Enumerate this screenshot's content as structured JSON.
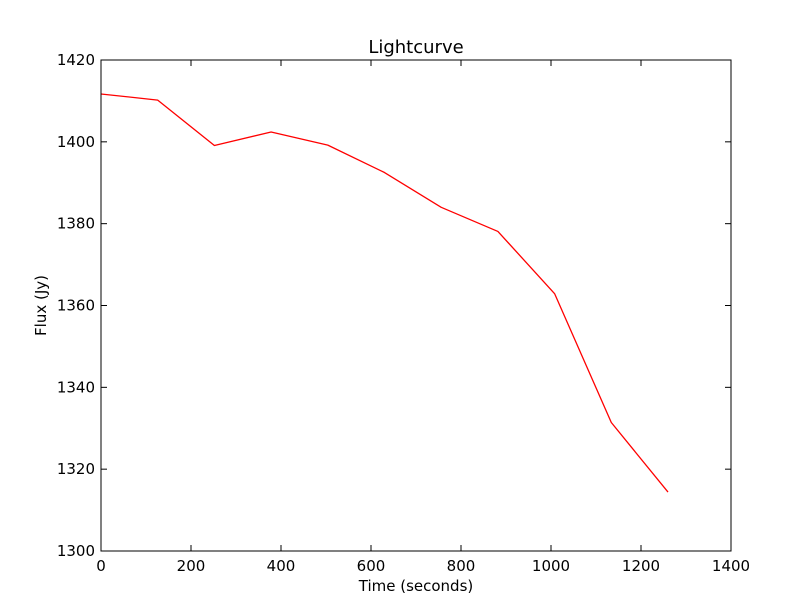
{
  "chart_data": {
    "type": "line",
    "title": "Lightcurve",
    "xlabel": "Time (seconds)",
    "ylabel": "Flux (Jy)",
    "xlim": [
      0,
      1400
    ],
    "ylim": [
      1300,
      1420
    ],
    "x_ticks": [
      0,
      200,
      400,
      600,
      800,
      1000,
      1200,
      1400
    ],
    "y_ticks": [
      1300,
      1320,
      1340,
      1360,
      1380,
      1400,
      1420
    ],
    "grid": false,
    "legend": "none",
    "series": [
      {
        "color": "#ff0000",
        "x": [
          0,
          126,
          252,
          378,
          504,
          630,
          756,
          882,
          1008,
          1134,
          1260
        ],
        "y": [
          1411.7,
          1410.2,
          1399.1,
          1402.4,
          1399.2,
          1392.5,
          1384.0,
          1378.1,
          1362.9,
          1331.4,
          1314.4
        ]
      }
    ]
  }
}
